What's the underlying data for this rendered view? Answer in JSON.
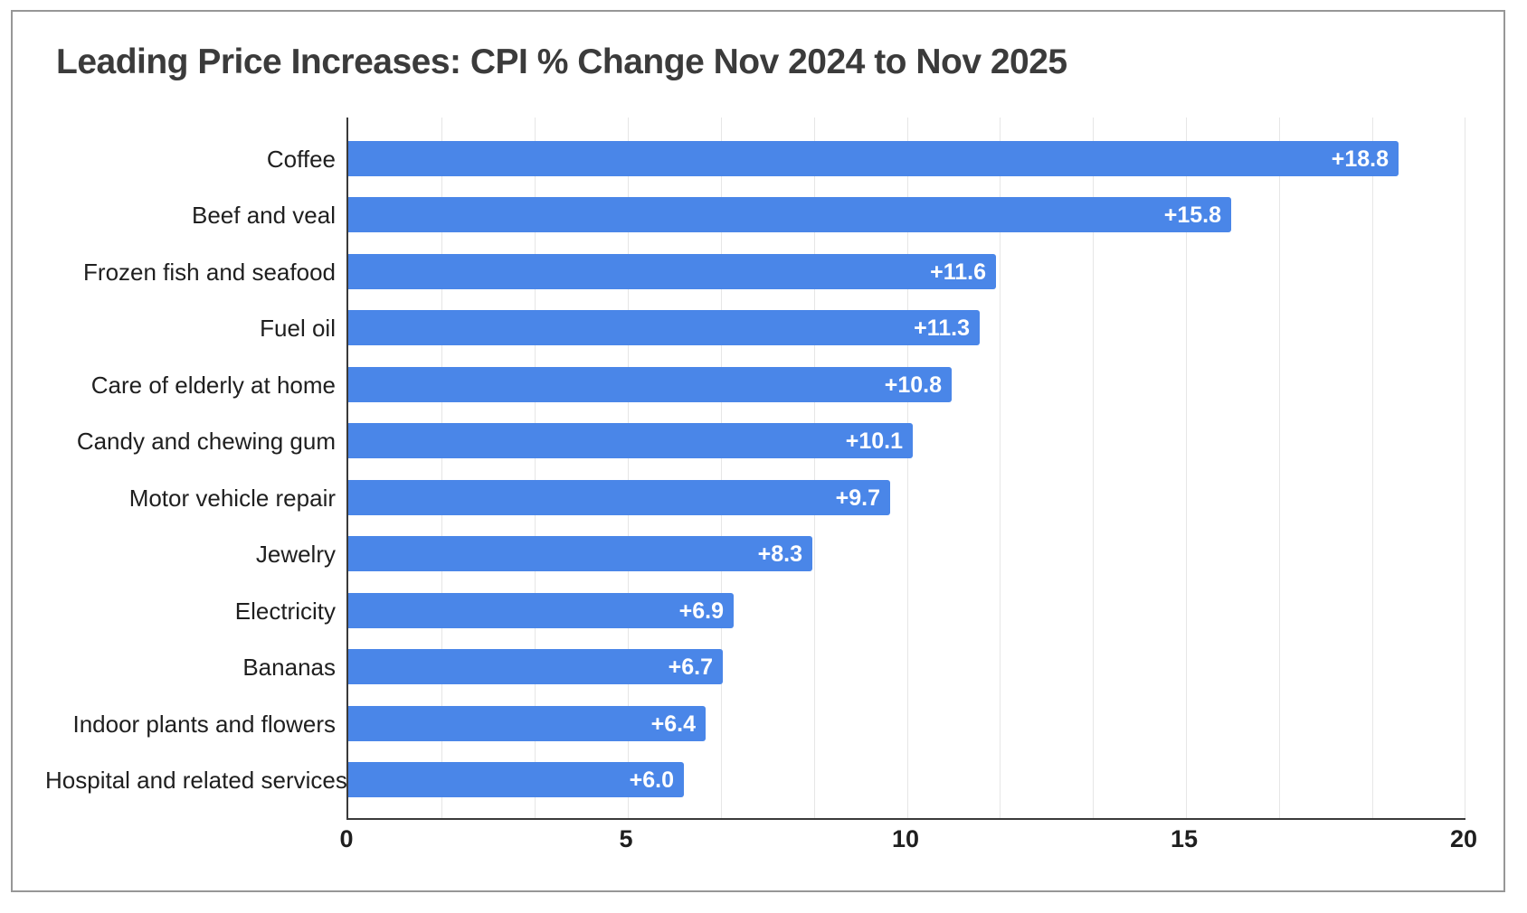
{
  "title": "Leading Price Increases: CPI % Change Nov 2024 to Nov 2025",
  "chart_data": {
    "type": "bar",
    "orientation": "horizontal",
    "title": "Leading Price Increases: CPI % Change Nov 2024 to Nov 2025",
    "xlabel": "",
    "ylabel": "",
    "categories": [
      "Coffee",
      "Beef and veal",
      "Frozen fish and seafood",
      "Fuel oil",
      "Care of elderly at home",
      "Candy and chewing gum",
      "Motor vehicle repair",
      "Jewelry",
      "Electricity",
      "Bananas",
      "Indoor plants and flowers",
      "Hospital and related services"
    ],
    "values": [
      18.8,
      15.8,
      11.6,
      11.3,
      10.8,
      10.1,
      9.7,
      8.3,
      6.9,
      6.7,
      6.4,
      6.0
    ],
    "value_labels": [
      "+18.8",
      "+15.8",
      "+11.6",
      "+11.3",
      "+10.8",
      "+10.1",
      "+9.7",
      "+8.3",
      "+6.9",
      "+6.7",
      "+6.4",
      "+6.0"
    ],
    "xlim": [
      0,
      20
    ],
    "x_ticks": [
      0,
      5,
      10,
      15,
      20
    ],
    "minor_gridlines_per_interval": 2,
    "grid": true,
    "legend": "none"
  },
  "style": {
    "bar_color": "#4a86e8",
    "value_label_color": "#ffffff",
    "grid_color": "#e6e6e6",
    "axis_color": "#3a3a3a",
    "title_color": "#3b3b3b",
    "label_color": "#1f1f1f",
    "frame_border_color": "#979797"
  }
}
